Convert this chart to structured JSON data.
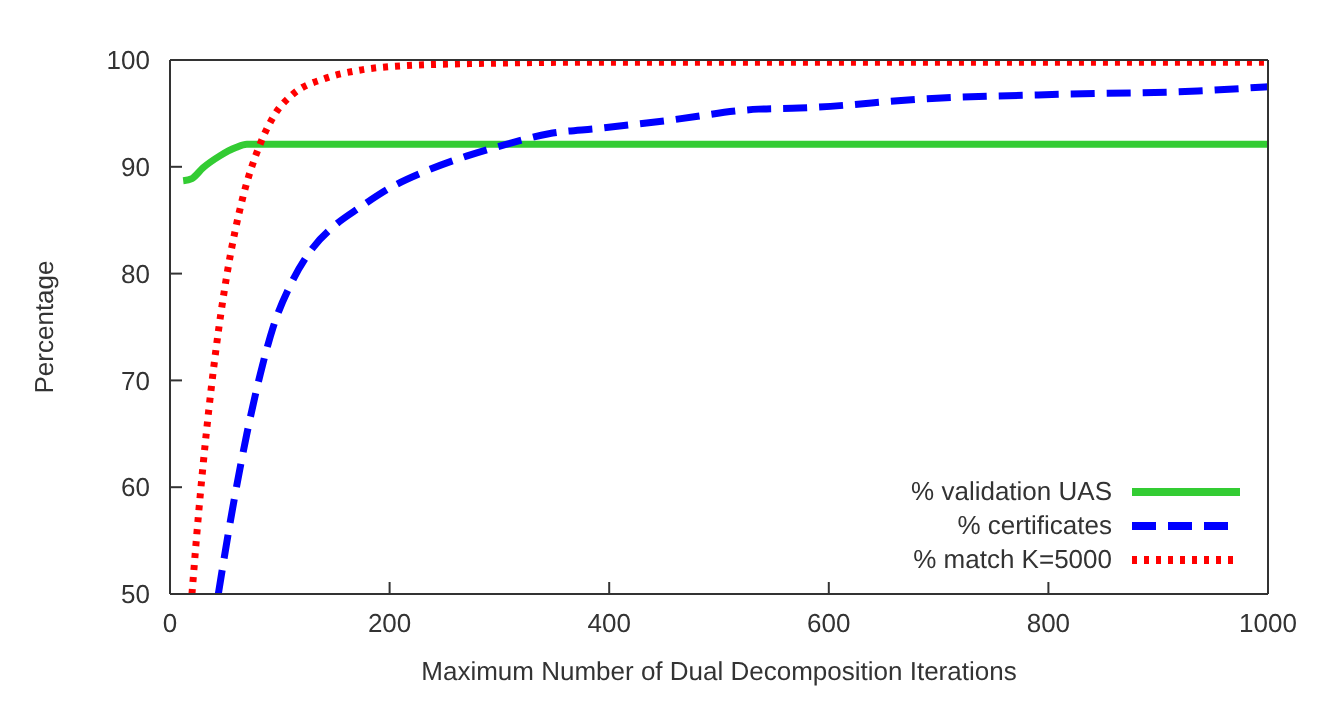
{
  "chart_data": {
    "type": "line",
    "xlabel": "Maximum Number of Dual Decomposition Iterations",
    "ylabel": "Percentage",
    "xlim": [
      0,
      1000
    ],
    "xticks": [
      0,
      200,
      400,
      600,
      800,
      1000
    ],
    "ylim": [
      50,
      100
    ],
    "yticks": [
      50,
      60,
      70,
      80,
      90,
      100
    ],
    "grid": false,
    "legend": "bottom right",
    "marker": "none",
    "series": [
      {
        "name": "% validation UAS",
        "color": "#33cc33",
        "line_style": "solid",
        "x": [
          12,
          20,
          30,
          45,
          60,
          70,
          100,
          200,
          400,
          600,
          800,
          1000
        ],
        "values": [
          88.7,
          88.9,
          89.9,
          91.0,
          91.8,
          92.1,
          92.1,
          92.1,
          92.1,
          92.1,
          92.1,
          92.1
        ]
      },
      {
        "name": "% certificates",
        "color": "#0000ff",
        "line_style": "dashed",
        "x": [
          44,
          57,
          70,
          82,
          94,
          110,
          130,
          150,
          173,
          200,
          233,
          270,
          306,
          345,
          391,
          450,
          536,
          573,
          694,
          815,
          936,
          1000
        ],
        "values": [
          50,
          58,
          65,
          70.5,
          75,
          79,
          82.4,
          84.5,
          86.2,
          88,
          89.6,
          91,
          92.1,
          93.1,
          93.6,
          94.3,
          95.4,
          95.5,
          96.4,
          96.8,
          97.1,
          97.5
        ]
      },
      {
        "name": "% match K=5000",
        "color": "#ff0000",
        "line_style": "dotted",
        "x": [
          20,
          26,
          33,
          42,
          52,
          66,
          82,
          96,
          112,
          142,
          170,
          203,
          294,
          400,
          600,
          800,
          1000
        ],
        "values": [
          50,
          57.5,
          65,
          73,
          80,
          87,
          92.1,
          95,
          96.8,
          98.3,
          99.0,
          99.4,
          99.7,
          99.8,
          99.8,
          99.8,
          99.8
        ]
      }
    ]
  }
}
